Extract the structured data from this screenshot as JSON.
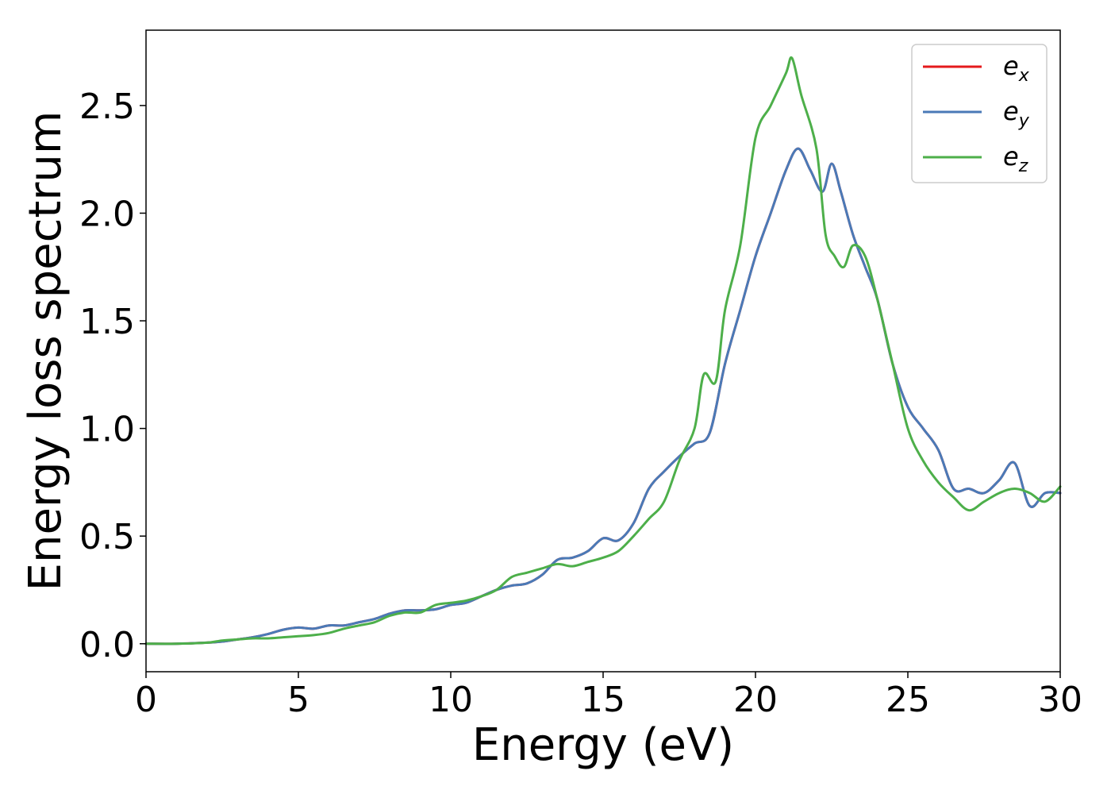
{
  "chart_data": {
    "type": "line",
    "xlabel": "Energy (eV)",
    "ylabel": "Energy loss spectrum",
    "xlim": [
      0,
      30
    ],
    "ylim": [
      -0.13,
      2.85
    ],
    "xticks": [
      0,
      5,
      10,
      15,
      20,
      25,
      30
    ],
    "xtick_labels": [
      "0",
      "5",
      "10",
      "15",
      "20",
      "25",
      "30"
    ],
    "yticks": [
      0.0,
      0.5,
      1.0,
      1.5,
      2.0,
      2.5
    ],
    "ytick_labels": [
      "0.0",
      "0.5",
      "1.0",
      "1.5",
      "2.0",
      "2.5"
    ],
    "grid": false,
    "legend_position": "top-right",
    "series": [
      {
        "name": "e_x",
        "legend_base": "e",
        "legend_sub": "x",
        "color": "#e41a1c",
        "x": [
          0,
          1,
          2,
          2.5,
          3,
          3.5,
          4,
          4.5,
          5,
          5.5,
          6,
          6.5,
          7,
          7.5,
          8,
          8.5,
          9,
          9.5,
          10,
          10.5,
          11,
          11.5,
          12,
          12.5,
          13,
          13.5,
          14,
          14.5,
          15,
          15.5,
          16,
          16.5,
          17,
          17.5,
          18,
          18.5,
          19,
          19.5,
          20,
          20.5,
          21,
          21.4,
          21.8,
          22.2,
          22.5,
          22.8,
          23.2,
          23.6,
          24,
          24.5,
          25,
          25.5,
          26,
          26.5,
          27,
          27.5,
          28,
          28.5,
          29,
          29.5,
          30
        ],
        "y": [
          0.0,
          0.0,
          0.005,
          0.01,
          0.02,
          0.03,
          0.045,
          0.065,
          0.075,
          0.07,
          0.085,
          0.085,
          0.1,
          0.115,
          0.14,
          0.155,
          0.155,
          0.16,
          0.18,
          0.19,
          0.22,
          0.25,
          0.27,
          0.28,
          0.32,
          0.39,
          0.4,
          0.43,
          0.49,
          0.48,
          0.56,
          0.72,
          0.8,
          0.87,
          0.93,
          0.98,
          1.3,
          1.55,
          1.8,
          2.0,
          2.2,
          2.3,
          2.2,
          2.1,
          2.23,
          2.1,
          1.9,
          1.75,
          1.6,
          1.3,
          1.1,
          1.0,
          0.9,
          0.72,
          0.72,
          0.7,
          0.76,
          0.84,
          0.64,
          0.7,
          0.7
        ]
      },
      {
        "name": "e_y",
        "legend_base": "e",
        "legend_sub": "y",
        "color": "#4a7ab7",
        "x": [
          0,
          1,
          2,
          2.5,
          3,
          3.5,
          4,
          4.5,
          5,
          5.5,
          6,
          6.5,
          7,
          7.5,
          8,
          8.5,
          9,
          9.5,
          10,
          10.5,
          11,
          11.5,
          12,
          12.5,
          13,
          13.5,
          14,
          14.5,
          15,
          15.5,
          16,
          16.5,
          17,
          17.5,
          18,
          18.5,
          19,
          19.5,
          20,
          20.5,
          21,
          21.4,
          21.8,
          22.2,
          22.5,
          22.8,
          23.2,
          23.6,
          24,
          24.5,
          25,
          25.5,
          26,
          26.5,
          27,
          27.5,
          28,
          28.5,
          29,
          29.5,
          30
        ],
        "y": [
          0.0,
          0.0,
          0.005,
          0.01,
          0.02,
          0.03,
          0.045,
          0.065,
          0.075,
          0.07,
          0.085,
          0.085,
          0.1,
          0.115,
          0.14,
          0.155,
          0.155,
          0.16,
          0.18,
          0.19,
          0.22,
          0.25,
          0.27,
          0.28,
          0.32,
          0.39,
          0.4,
          0.43,
          0.49,
          0.48,
          0.56,
          0.72,
          0.8,
          0.87,
          0.93,
          0.98,
          1.3,
          1.55,
          1.8,
          2.0,
          2.2,
          2.3,
          2.2,
          2.1,
          2.23,
          2.1,
          1.9,
          1.75,
          1.6,
          1.3,
          1.1,
          1.0,
          0.9,
          0.72,
          0.72,
          0.7,
          0.76,
          0.84,
          0.64,
          0.7,
          0.7
        ]
      },
      {
        "name": "e_z",
        "legend_base": "e",
        "legend_sub": "z",
        "color": "#4daf4a",
        "x": [
          0,
          1,
          2,
          2.5,
          3,
          3.5,
          4,
          4.5,
          5,
          5.5,
          6,
          6.5,
          7,
          7.5,
          8,
          8.5,
          9,
          9.5,
          10,
          10.5,
          11,
          11.5,
          12,
          12.5,
          13,
          13.5,
          14,
          14.5,
          15,
          15.5,
          16,
          16.5,
          17,
          17.5,
          18,
          18.3,
          18.7,
          19,
          19.5,
          20,
          20.5,
          21,
          21.2,
          21.5,
          22,
          22.3,
          22.6,
          22.9,
          23.2,
          23.6,
          24,
          24.5,
          25,
          25.5,
          26,
          26.5,
          27,
          27.5,
          28,
          28.5,
          29,
          29.5,
          30
        ],
        "y": [
          0.0,
          0.0,
          0.005,
          0.015,
          0.02,
          0.025,
          0.025,
          0.03,
          0.035,
          0.04,
          0.05,
          0.07,
          0.085,
          0.1,
          0.13,
          0.145,
          0.145,
          0.18,
          0.19,
          0.2,
          0.22,
          0.25,
          0.31,
          0.33,
          0.35,
          0.37,
          0.36,
          0.38,
          0.4,
          0.43,
          0.5,
          0.58,
          0.66,
          0.85,
          1.0,
          1.25,
          1.22,
          1.55,
          1.85,
          2.35,
          2.5,
          2.65,
          2.72,
          2.55,
          2.3,
          1.9,
          1.8,
          1.75,
          1.85,
          1.8,
          1.6,
          1.3,
          1.0,
          0.85,
          0.75,
          0.68,
          0.62,
          0.66,
          0.7,
          0.72,
          0.7,
          0.66,
          0.73
        ]
      }
    ]
  }
}
